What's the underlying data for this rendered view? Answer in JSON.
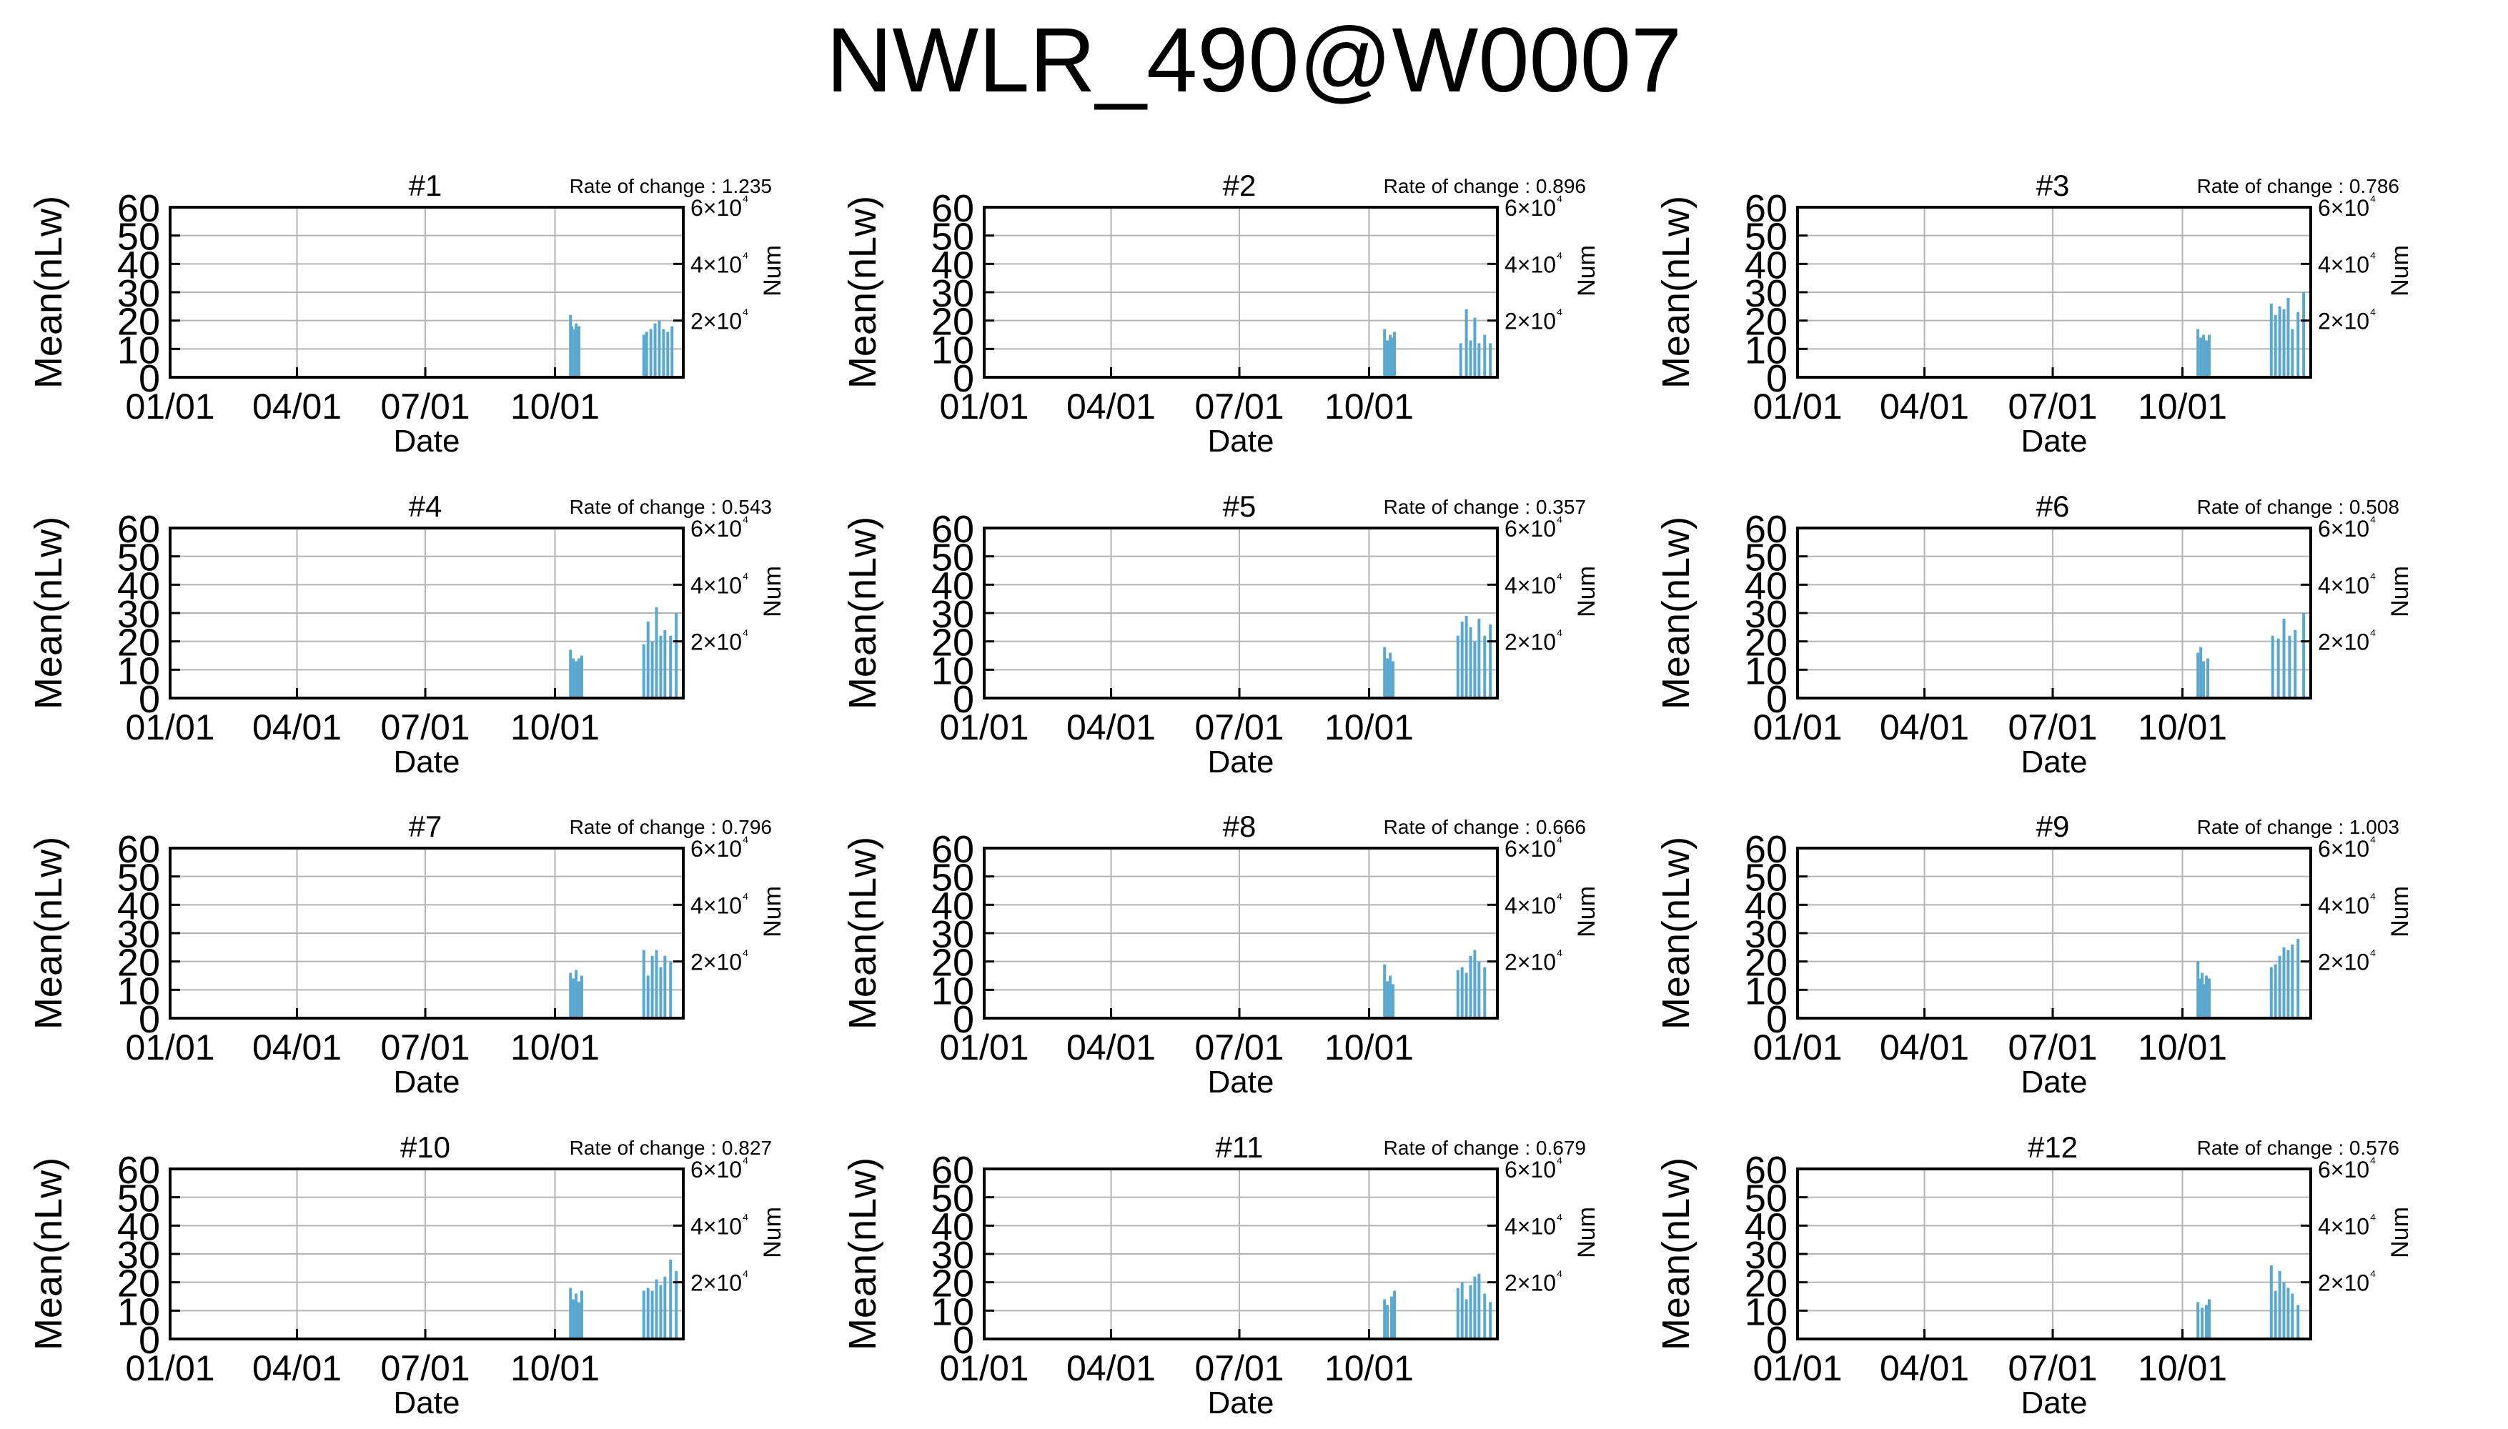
{
  "page_title": "NWLR_490@W0007",
  "colors": {
    "axis": "#000000",
    "grid": "#b4b4b4",
    "bars": "#5aa8d0",
    "background": "#ffffff"
  },
  "common": {
    "xlabel": "Date",
    "ylabel": "Mean(nLw)",
    "y2label": "Num",
    "x_tick_labels": [
      "01/01",
      "04/01",
      "07/01",
      "10/01"
    ],
    "y_tick_labels": [
      "0",
      "10",
      "20",
      "30",
      "40",
      "50",
      "60"
    ],
    "y2_tick_labels": [
      "2×10⁴",
      "4×10⁴",
      "6×10⁴"
    ],
    "rate_prefix": "Rate of change : "
  },
  "chart_data": [
    {
      "type": "bar",
      "title": "#1",
      "rate_of_change": "1.235",
      "xlabel": "Date",
      "ylabel": "Mean(nLw)",
      "y2label": "Num",
      "ylim": [
        0,
        60
      ],
      "y2lim": [
        0,
        60000
      ],
      "xlim": [
        "01/01",
        "12/31"
      ],
      "grid": true,
      "series": [
        {
          "x": [
            "10/12",
            "10/13",
            "10/15",
            "10/16",
            "10/18",
            "12/03",
            "12/05",
            "12/08",
            "12/11",
            "12/14",
            "12/17",
            "12/20",
            "12/23"
          ],
          "values": [
            22,
            18,
            17,
            19,
            18,
            15,
            16,
            17,
            19,
            20,
            17,
            16,
            18
          ]
        }
      ]
    },
    {
      "type": "bar",
      "title": "#2",
      "rate_of_change": "0.896",
      "xlabel": "Date",
      "ylabel": "Mean(nLw)",
      "y2label": "Num",
      "ylim": [
        0,
        60
      ],
      "y2lim": [
        0,
        60000
      ],
      "xlim": [
        "01/01",
        "12/31"
      ],
      "grid": true,
      "series": [
        {
          "x": [
            "10/12",
            "10/14",
            "10/16",
            "10/18",
            "10/19",
            "12/05",
            "12/09",
            "12/12",
            "12/15",
            "12/18",
            "12/22",
            "12/26"
          ],
          "values": [
            17,
            13,
            15,
            14,
            16,
            12,
            24,
            13,
            21,
            12,
            15,
            12
          ]
        }
      ]
    },
    {
      "type": "bar",
      "title": "#3",
      "rate_of_change": "0.786",
      "xlabel": "Date",
      "ylabel": "Mean(nLw)",
      "y2label": "Num",
      "ylim": [
        0,
        60
      ],
      "y2lim": [
        0,
        60000
      ],
      "xlim": [
        "01/01",
        "12/31"
      ],
      "grid": true,
      "series": [
        {
          "x": [
            "10/12",
            "10/14",
            "10/16",
            "10/18",
            "10/20",
            "12/03",
            "12/06",
            "12/09",
            "12/12",
            "12/15",
            "12/18",
            "12/22",
            "12/26"
          ],
          "values": [
            17,
            14,
            15,
            13,
            15,
            26,
            22,
            25,
            24,
            28,
            17,
            23,
            30
          ]
        }
      ]
    },
    {
      "type": "bar",
      "title": "#4",
      "rate_of_change": "0.543",
      "xlabel": "Date",
      "ylabel": "Mean(nLw)",
      "y2label": "Num",
      "ylim": [
        0,
        60
      ],
      "y2lim": [
        0,
        60000
      ],
      "xlim": [
        "01/01",
        "12/31"
      ],
      "grid": true,
      "series": [
        {
          "x": [
            "10/12",
            "10/14",
            "10/16",
            "10/18",
            "10/20",
            "12/03",
            "12/06",
            "12/09",
            "12/12",
            "12/15",
            "12/18",
            "12/22",
            "12/26"
          ],
          "values": [
            17,
            14,
            13,
            14,
            15,
            19,
            27,
            20,
            32,
            22,
            24,
            22,
            30
          ]
        }
      ]
    },
    {
      "type": "bar",
      "title": "#5",
      "rate_of_change": "0.357",
      "xlabel": "Date",
      "ylabel": "Mean(nLw)",
      "y2label": "Num",
      "ylim": [
        0,
        60
      ],
      "y2lim": [
        0,
        60000
      ],
      "xlim": [
        "01/01",
        "12/31"
      ],
      "grid": true,
      "series": [
        {
          "x": [
            "10/12",
            "10/14",
            "10/16",
            "10/18",
            "12/03",
            "12/06",
            "12/09",
            "12/12",
            "12/15",
            "12/18",
            "12/22",
            "12/26"
          ],
          "values": [
            18,
            14,
            16,
            13,
            22,
            27,
            29,
            25,
            20,
            28,
            22,
            26
          ]
        }
      ]
    },
    {
      "type": "bar",
      "title": "#6",
      "rate_of_change": "0.508",
      "xlabel": "Date",
      "ylabel": "Mean(nLw)",
      "y2label": "Num",
      "ylim": [
        0,
        60
      ],
      "y2lim": [
        0,
        60000
      ],
      "xlim": [
        "01/01",
        "12/31"
      ],
      "grid": true,
      "series": [
        {
          "x": [
            "10/12",
            "10/14",
            "10/16",
            "10/19",
            "12/04",
            "12/08",
            "12/12",
            "12/16",
            "12/20",
            "12/26"
          ],
          "values": [
            16,
            18,
            13,
            14,
            22,
            21,
            28,
            22,
            24,
            30
          ]
        }
      ]
    },
    {
      "type": "bar",
      "title": "#7",
      "rate_of_change": "0.796",
      "xlabel": "Date",
      "ylabel": "Mean(nLw)",
      "y2label": "Num",
      "ylim": [
        0,
        60
      ],
      "y2lim": [
        0,
        60000
      ],
      "xlim": [
        "01/01",
        "12/31"
      ],
      "grid": true,
      "series": [
        {
          "x": [
            "10/12",
            "10/14",
            "10/16",
            "10/18",
            "10/20",
            "12/03",
            "12/06",
            "12/09",
            "12/12",
            "12/15",
            "12/18",
            "12/22"
          ],
          "values": [
            16,
            14,
            17,
            13,
            15,
            24,
            15,
            22,
            24,
            18,
            22,
            20
          ]
        }
      ]
    },
    {
      "type": "bar",
      "title": "#8",
      "rate_of_change": "0.666",
      "xlabel": "Date",
      "ylabel": "Mean(nLw)",
      "y2label": "Num",
      "ylim": [
        0,
        60
      ],
      "y2lim": [
        0,
        60000
      ],
      "xlim": [
        "01/01",
        "12/31"
      ],
      "grid": true,
      "series": [
        {
          "x": [
            "10/12",
            "10/14",
            "10/16",
            "10/18",
            "12/03",
            "12/06",
            "12/09",
            "12/12",
            "12/15",
            "12/18",
            "12/22"
          ],
          "values": [
            19,
            13,
            15,
            12,
            17,
            18,
            16,
            22,
            24,
            20,
            18
          ]
        }
      ]
    },
    {
      "type": "bar",
      "title": "#9",
      "rate_of_change": "1.003",
      "xlabel": "Date",
      "ylabel": "Mean(nLw)",
      "y2label": "Num",
      "ylim": [
        0,
        60
      ],
      "y2lim": [
        0,
        60000
      ],
      "xlim": [
        "01/01",
        "12/31"
      ],
      "grid": true,
      "series": [
        {
          "x": [
            "10/12",
            "10/13",
            "10/15",
            "10/16",
            "10/18",
            "10/20",
            "12/03",
            "12/06",
            "12/09",
            "12/12",
            "12/15",
            "12/18",
            "12/22"
          ],
          "values": [
            20,
            14,
            16,
            12,
            15,
            14,
            18,
            19,
            22,
            25,
            24,
            26,
            28
          ]
        }
      ]
    },
    {
      "type": "bar",
      "title": "#10",
      "rate_of_change": "0.827",
      "xlabel": "Date",
      "ylabel": "Mean(nLw)",
      "y2label": "Num",
      "ylim": [
        0,
        60
      ],
      "y2lim": [
        0,
        60000
      ],
      "xlim": [
        "01/01",
        "12/31"
      ],
      "grid": true,
      "series": [
        {
          "x": [
            "10/12",
            "10/14",
            "10/16",
            "10/18",
            "10/20",
            "12/03",
            "12/06",
            "12/09",
            "12/12",
            "12/15",
            "12/18",
            "12/22",
            "12/26"
          ],
          "values": [
            18,
            14,
            16,
            13,
            17,
            17,
            18,
            17,
            21,
            19,
            22,
            28,
            24
          ]
        }
      ]
    },
    {
      "type": "bar",
      "title": "#11",
      "rate_of_change": "0.679",
      "xlabel": "Date",
      "ylabel": "Mean(nLw)",
      "y2label": "Num",
      "ylim": [
        0,
        60
      ],
      "y2lim": [
        0,
        60000
      ],
      "xlim": [
        "01/01",
        "12/31"
      ],
      "grid": true,
      "series": [
        {
          "x": [
            "10/12",
            "10/14",
            "10/17",
            "10/19",
            "12/03",
            "12/06",
            "12/09",
            "12/12",
            "12/15",
            "12/18",
            "12/22",
            "12/26"
          ],
          "values": [
            14,
            12,
            15,
            17,
            18,
            20,
            14,
            19,
            22,
            23,
            16,
            13
          ]
        }
      ]
    },
    {
      "type": "bar",
      "title": "#12",
      "rate_of_change": "0.576",
      "xlabel": "Date",
      "ylabel": "Mean(nLw)",
      "y2label": "Num",
      "ylim": [
        0,
        60
      ],
      "y2lim": [
        0,
        60000
      ],
      "xlim": [
        "01/01",
        "12/31"
      ],
      "grid": true,
      "series": [
        {
          "x": [
            "10/12",
            "10/15",
            "10/18",
            "10/20",
            "12/03",
            "12/06",
            "12/09",
            "12/12",
            "12/15",
            "12/18",
            "12/22"
          ],
          "values": [
            13,
            11,
            12,
            14,
            26,
            17,
            24,
            20,
            18,
            16,
            12
          ]
        }
      ]
    }
  ]
}
